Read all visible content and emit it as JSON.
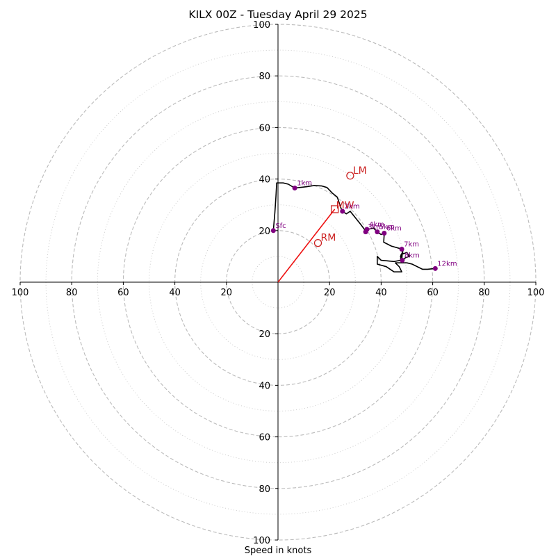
{
  "chart_data": {
    "type": "hodograph",
    "title": "KILX 00Z - Tuesday April 29 2025",
    "xlabel": "Speed in knots",
    "units": "knots",
    "max_speed": 100,
    "rings_major": [
      20,
      40,
      60,
      80,
      100
    ],
    "rings_minor": [
      10,
      30,
      50,
      70,
      90
    ],
    "ticks": {
      "x": [
        "100",
        "80",
        "60",
        "40",
        "20",
        "20",
        "40",
        "60",
        "80",
        "100"
      ],
      "x_values": [
        -100,
        -80,
        -60,
        -40,
        -20,
        20,
        40,
        60,
        80,
        100
      ],
      "y": [
        "100",
        "80",
        "60",
        "40",
        "20",
        "20",
        "40",
        "60",
        "80",
        "100"
      ],
      "y_values": [
        100,
        80,
        60,
        40,
        20,
        -20,
        -40,
        -60,
        -80,
        -100
      ]
    },
    "grid": true,
    "colors": {
      "hodograph": "#000000",
      "markers": "#800080",
      "motion": "#cc2222",
      "shear_vector": "#ee1111",
      "ring_major": "#bbbbbb",
      "ring_minor": "#cccccc"
    },
    "trace": [
      [
        -1.8,
        20
      ],
      [
        -1.2,
        27
      ],
      [
        -0.8,
        33
      ],
      [
        -0.5,
        38.5
      ],
      [
        2,
        38.5
      ],
      [
        4,
        38
      ],
      [
        6.5,
        36.5
      ],
      [
        11,
        37
      ],
      [
        14,
        37.5
      ],
      [
        17,
        37.3
      ],
      [
        19,
        36.7
      ],
      [
        21,
        34.6
      ],
      [
        23,
        33
      ],
      [
        24.5,
        28.5
      ],
      [
        25,
        27.5
      ],
      [
        26.5,
        26.5
      ],
      [
        28,
        27.5
      ],
      [
        30,
        25
      ],
      [
        32,
        22.5
      ],
      [
        33.5,
        20.5
      ],
      [
        34,
        19.5
      ],
      [
        35,
        20.5
      ],
      [
        37,
        21
      ],
      [
        38.5,
        19.5
      ],
      [
        40,
        18.5
      ],
      [
        41.2,
        19
      ],
      [
        41,
        15.5
      ],
      [
        44,
        14
      ],
      [
        47.5,
        13
      ],
      [
        48,
        12.8
      ],
      [
        48.5,
        11
      ],
      [
        50,
        11.5
      ],
      [
        51,
        10
      ],
      [
        49.5,
        9.5
      ],
      [
        48,
        8.5
      ],
      [
        48.2,
        11
      ],
      [
        48.5,
        12.5
      ],
      [
        48.2,
        11.5
      ],
      [
        47.5,
        9.8
      ],
      [
        47.8,
        10.8
      ],
      [
        47.5,
        8.5
      ],
      [
        45,
        8
      ],
      [
        42,
        8.3
      ],
      [
        40,
        8.5
      ],
      [
        38.5,
        10
      ],
      [
        38.5,
        7
      ],
      [
        42,
        6
      ],
      [
        45,
        4
      ],
      [
        48,
        4
      ],
      [
        47,
        6
      ],
      [
        45.5,
        7.5
      ],
      [
        50,
        7.5
      ],
      [
        52,
        7
      ],
      [
        56,
        5
      ],
      [
        58,
        5
      ],
      [
        61,
        5.3
      ]
    ],
    "height_markers": [
      {
        "label": "Sfc",
        "u": -1.8,
        "v": 20
      },
      {
        "label": "1km",
        "u": 6.5,
        "v": 36.5
      },
      {
        "label": "2km",
        "u": 25,
        "v": 27.5
      },
      {
        "label": "3km",
        "u": 34,
        "v": 19.5
      },
      {
        "label": "4km",
        "u": 34.5,
        "v": 20.5
      },
      {
        "label": "5km",
        "u": 38.5,
        "v": 19.5
      },
      {
        "label": "6km",
        "u": 41.2,
        "v": 19
      },
      {
        "label": "7km",
        "u": 48,
        "v": 12.8
      },
      {
        "label": "8km",
        "u": 48.2,
        "v": 8.5
      },
      {
        "label": "12km",
        "u": 61,
        "v": 5.3
      }
    ],
    "storm_motion": {
      "RM": {
        "label": "RM",
        "u": 15.5,
        "v": 15.2
      },
      "LM": {
        "label": "LM",
        "u": 28,
        "v": 41.3
      },
      "MW": {
        "label": "MW",
        "u": 22,
        "v": 28.3
      }
    },
    "shear_vector": {
      "from": [
        0,
        0
      ],
      "to": [
        22,
        28.3
      ]
    }
  }
}
